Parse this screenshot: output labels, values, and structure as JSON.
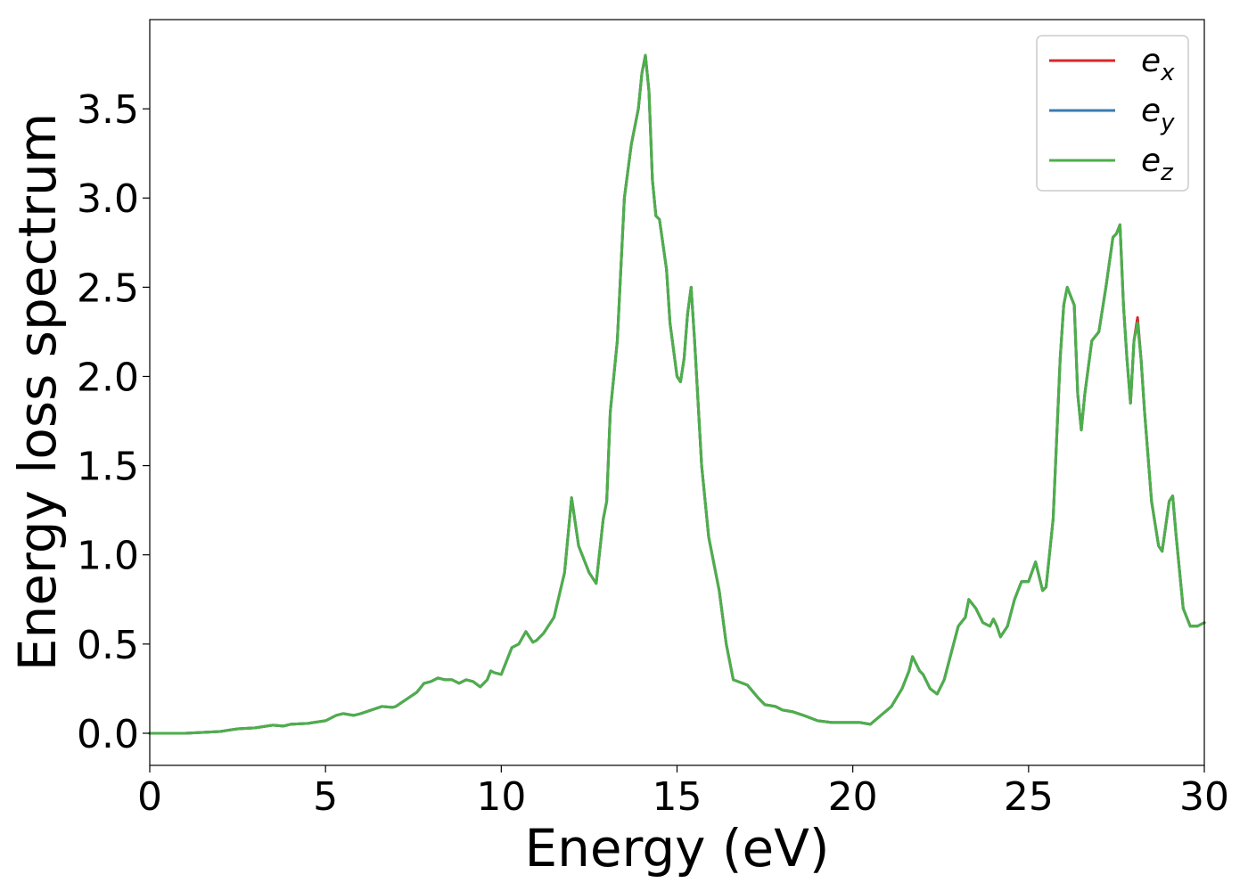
{
  "chart_data": {
    "type": "line",
    "title": "",
    "xlabel": "Energy (eV)",
    "ylabel": "Energy loss spectrum",
    "xlim": [
      0,
      30
    ],
    "ylim": [
      -0.18,
      4.0
    ],
    "xticks": [
      0,
      5,
      10,
      15,
      20,
      25,
      30
    ],
    "xtick_labels": [
      "0",
      "5",
      "10",
      "15",
      "20",
      "25",
      "30"
    ],
    "yticks": [
      0.0,
      0.5,
      1.0,
      1.5,
      2.0,
      2.5,
      3.0,
      3.5
    ],
    "ytick_labels": [
      "0.0",
      "0.5",
      "1.0",
      "1.5",
      "2.0",
      "2.5",
      "3.0",
      "3.5"
    ],
    "grid": false,
    "legend_position": "top-right",
    "x": [
      0,
      0.5,
      1,
      1.5,
      2,
      2.5,
      3,
      3.5,
      3.8,
      4,
      4.5,
      5,
      5.3,
      5.5,
      5.8,
      6,
      6.3,
      6.6,
      6.9,
      7,
      7.3,
      7.6,
      7.8,
      8,
      8.2,
      8.4,
      8.6,
      8.8,
      9,
      9.2,
      9.4,
      9.6,
      9.7,
      9.8,
      10,
      10.3,
      10.5,
      10.7,
      10.9,
      11,
      11.2,
      11.5,
      11.8,
      12,
      12.2,
      12.5,
      12.7,
      12.9,
      13,
      13.1,
      13.3,
      13.5,
      13.7,
      13.9,
      14,
      14.1,
      14.2,
      14.3,
      14.4,
      14.5,
      14.7,
      14.8,
      15,
      15.1,
      15.2,
      15.3,
      15.4,
      15.5,
      15.7,
      15.9,
      16,
      16.2,
      16.4,
      16.6,
      17,
      17.3,
      17.5,
      17.8,
      18,
      18.3,
      18.6,
      19,
      19.4,
      19.8,
      20.2,
      20.5,
      20.8,
      21.1,
      21.4,
      21.6,
      21.7,
      21.9,
      22,
      22.2,
      22.4,
      22.6,
      22.8,
      23,
      23.2,
      23.3,
      23.5,
      23.7,
      23.9,
      24,
      24.1,
      24.2,
      24.4,
      24.6,
      24.8,
      25,
      25.2,
      25.4,
      25.5,
      25.7,
      25.9,
      26,
      26.1,
      26.3,
      26.4,
      26.5,
      26.6,
      26.8,
      27,
      27.2,
      27.4,
      27.5,
      27.6,
      27.7,
      27.8,
      27.9,
      28,
      28.1,
      28.2,
      28.3,
      28.5,
      28.7,
      28.8,
      29,
      29.1,
      29.2,
      29.4,
      29.6,
      29.8,
      30
    ],
    "series": [
      {
        "name": "ex",
        "label_main": "e",
        "label_sub": "x",
        "color": "#d62728",
        "values": [
          0,
          0,
          0,
          0.005,
          0.01,
          0.025,
          0.03,
          0.045,
          0.04,
          0.05,
          0.055,
          0.07,
          0.1,
          0.11,
          0.1,
          0.11,
          0.13,
          0.15,
          0.145,
          0.15,
          0.19,
          0.23,
          0.28,
          0.29,
          0.31,
          0.3,
          0.3,
          0.28,
          0.3,
          0.29,
          0.26,
          0.3,
          0.35,
          0.34,
          0.33,
          0.48,
          0.5,
          0.57,
          0.51,
          0.52,
          0.56,
          0.65,
          0.9,
          1.32,
          1.05,
          0.9,
          0.84,
          1.2,
          1.3,
          1.8,
          2.2,
          3.0,
          3.3,
          3.5,
          3.7,
          3.8,
          3.6,
          3.1,
          2.9,
          2.88,
          2.6,
          2.3,
          2.0,
          1.97,
          2.1,
          2.35,
          2.5,
          2.2,
          1.5,
          1.1,
          1.0,
          0.8,
          0.5,
          0.3,
          0.27,
          0.2,
          0.16,
          0.15,
          0.13,
          0.12,
          0.1,
          0.07,
          0.06,
          0.06,
          0.06,
          0.05,
          0.1,
          0.15,
          0.25,
          0.35,
          0.43,
          0.35,
          0.33,
          0.25,
          0.22,
          0.3,
          0.45,
          0.6,
          0.65,
          0.75,
          0.7,
          0.62,
          0.6,
          0.64,
          0.6,
          0.54,
          0.6,
          0.75,
          0.85,
          0.85,
          0.96,
          0.8,
          0.82,
          1.2,
          2.1,
          2.4,
          2.5,
          2.4,
          1.9,
          1.7,
          1.9,
          2.2,
          2.25,
          2.5,
          2.78,
          2.8,
          2.85,
          2.4,
          2.1,
          1.85,
          2.2,
          2.33,
          2.1,
          1.8,
          1.3,
          1.05,
          1.02,
          1.3,
          1.33,
          1.1,
          0.7,
          0.6,
          0.6,
          0.62
        ]
      },
      {
        "name": "ey",
        "label_main": "e",
        "label_sub": "y",
        "color": "#3a7bb0",
        "values": [
          0,
          0,
          0,
          0.005,
          0.01,
          0.025,
          0.03,
          0.045,
          0.04,
          0.05,
          0.055,
          0.07,
          0.1,
          0.11,
          0.1,
          0.11,
          0.13,
          0.15,
          0.145,
          0.15,
          0.19,
          0.23,
          0.28,
          0.29,
          0.31,
          0.3,
          0.3,
          0.28,
          0.3,
          0.29,
          0.26,
          0.3,
          0.35,
          0.34,
          0.33,
          0.48,
          0.5,
          0.57,
          0.51,
          0.52,
          0.56,
          0.65,
          0.9,
          1.32,
          1.05,
          0.9,
          0.84,
          1.2,
          1.3,
          1.8,
          2.2,
          3.0,
          3.3,
          3.5,
          3.7,
          3.8,
          3.6,
          3.1,
          2.9,
          2.88,
          2.6,
          2.3,
          2.0,
          1.97,
          2.1,
          2.35,
          2.5,
          2.2,
          1.5,
          1.1,
          1.0,
          0.8,
          0.5,
          0.3,
          0.27,
          0.2,
          0.16,
          0.15,
          0.13,
          0.12,
          0.1,
          0.07,
          0.06,
          0.06,
          0.06,
          0.05,
          0.1,
          0.15,
          0.25,
          0.35,
          0.43,
          0.35,
          0.33,
          0.25,
          0.22,
          0.3,
          0.45,
          0.6,
          0.65,
          0.75,
          0.7,
          0.62,
          0.6,
          0.64,
          0.6,
          0.54,
          0.6,
          0.75,
          0.85,
          0.85,
          0.96,
          0.8,
          0.82,
          1.2,
          2.1,
          2.4,
          2.5,
          2.4,
          1.9,
          1.7,
          1.9,
          2.2,
          2.25,
          2.5,
          2.78,
          2.8,
          2.85,
          2.4,
          2.1,
          1.85,
          2.2,
          2.3,
          2.1,
          1.8,
          1.3,
          1.05,
          1.02,
          1.3,
          1.33,
          1.1,
          0.7,
          0.6,
          0.6,
          0.62
        ]
      },
      {
        "name": "ez",
        "label_main": "e",
        "label_sub": "z",
        "color": "#4daf4a",
        "values": [
          0,
          0,
          0,
          0.005,
          0.01,
          0.025,
          0.03,
          0.045,
          0.04,
          0.05,
          0.055,
          0.07,
          0.1,
          0.11,
          0.1,
          0.11,
          0.13,
          0.15,
          0.145,
          0.15,
          0.19,
          0.23,
          0.28,
          0.29,
          0.31,
          0.3,
          0.3,
          0.28,
          0.3,
          0.29,
          0.26,
          0.3,
          0.35,
          0.34,
          0.33,
          0.48,
          0.5,
          0.57,
          0.51,
          0.52,
          0.56,
          0.65,
          0.9,
          1.32,
          1.05,
          0.9,
          0.84,
          1.2,
          1.3,
          1.8,
          2.2,
          3.0,
          3.3,
          3.5,
          3.7,
          3.8,
          3.6,
          3.1,
          2.9,
          2.88,
          2.6,
          2.3,
          2.0,
          1.97,
          2.1,
          2.35,
          2.5,
          2.2,
          1.5,
          1.1,
          1.0,
          0.8,
          0.5,
          0.3,
          0.27,
          0.2,
          0.16,
          0.15,
          0.13,
          0.12,
          0.1,
          0.07,
          0.06,
          0.06,
          0.06,
          0.05,
          0.1,
          0.15,
          0.25,
          0.35,
          0.43,
          0.35,
          0.33,
          0.25,
          0.22,
          0.3,
          0.45,
          0.6,
          0.65,
          0.75,
          0.7,
          0.62,
          0.6,
          0.64,
          0.6,
          0.54,
          0.6,
          0.75,
          0.85,
          0.85,
          0.96,
          0.8,
          0.82,
          1.2,
          2.1,
          2.4,
          2.5,
          2.4,
          1.9,
          1.7,
          1.9,
          2.2,
          2.25,
          2.5,
          2.78,
          2.8,
          2.85,
          2.4,
          2.1,
          1.85,
          2.2,
          2.3,
          2.1,
          1.8,
          1.3,
          1.05,
          1.02,
          1.3,
          1.33,
          1.1,
          0.7,
          0.6,
          0.6,
          0.62
        ]
      }
    ]
  }
}
